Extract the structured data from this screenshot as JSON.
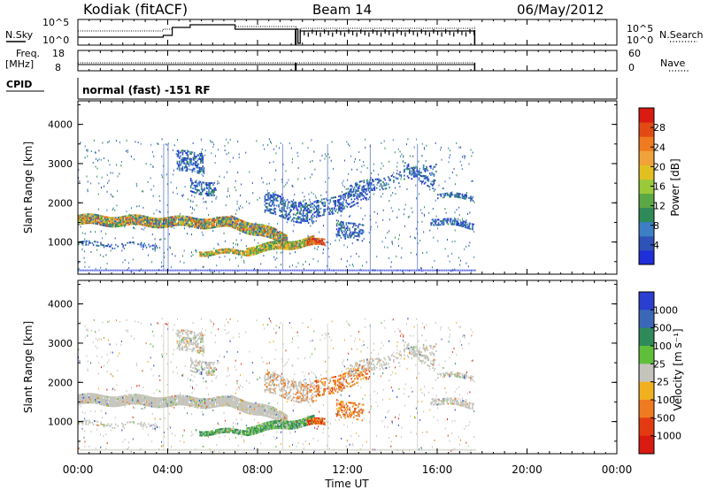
{
  "header": {
    "station": "Kodiak (fitACF)",
    "beam": "Beam 14",
    "date": "06/May/2012"
  },
  "noise_panel": {
    "label": "N.Sky",
    "right_label": "N.Search",
    "left_ticks": [
      "10^5",
      "10^0"
    ],
    "right_ticks": [
      "10^5",
      "10^0"
    ]
  },
  "freq_panel": {
    "label_line1": "Freq.",
    "label_line2": "[MHz]",
    "right_label": "Nave",
    "left_ticks": [
      "18",
      "8"
    ],
    "right_ticks": [
      "60",
      "0"
    ]
  },
  "cpid": {
    "label": "CPID",
    "value": "normal (fast) -151 RF"
  },
  "colors": {
    "power": [
      "#1e2ed8",
      "#2f52b8",
      "#3e7ec4",
      "#2f8a5a",
      "#5aa845",
      "#9bc93a",
      "#e3c021",
      "#f1a23a",
      "#f07a1f",
      "#e24a14",
      "#d81a10"
    ],
    "velocity": [
      "#2a3fd0",
      "#3b67b8",
      "#2f8a5a",
      "#5fbf3a",
      "#c4c4bc",
      "#f0b020",
      "#f07a1f",
      "#e43a12",
      "#d81a10"
    ]
  },
  "chart_data": [
    {
      "type": "heatmap",
      "name": "Power",
      "ylabel": "Slant Range [km]",
      "yticks": [
        "4000",
        "3000",
        "2000",
        "1000"
      ],
      "ylim": [
        180,
        4600
      ],
      "xlim": [
        "00:00",
        "24:00"
      ],
      "colorbar_label": "Power [dB]",
      "colorbar_ticks": [
        "28",
        "24",
        "20",
        "16",
        "12",
        "8",
        "4"
      ],
      "colorbar_range": [
        0,
        32
      ],
      "data_end": "17:40"
    },
    {
      "type": "heatmap",
      "name": "Velocity",
      "ylabel": "Slant Range [km]",
      "yticks": [
        "4000",
        "3000",
        "2000",
        "1000"
      ],
      "ylim": [
        180,
        4600
      ],
      "xlim": [
        "00:00",
        "24:00"
      ],
      "colorbar_label": "Velocity [m s⁻¹]",
      "colorbar_ticks": [
        "1000",
        "500",
        "100",
        "25",
        "-25",
        "-100",
        "-500",
        "-1000"
      ]
    }
  ],
  "x_axis": {
    "ticks": [
      "00:00",
      "04:00",
      "08:00",
      "12:00",
      "16:00",
      "20:00",
      "00:00"
    ],
    "label": "Time UT"
  }
}
